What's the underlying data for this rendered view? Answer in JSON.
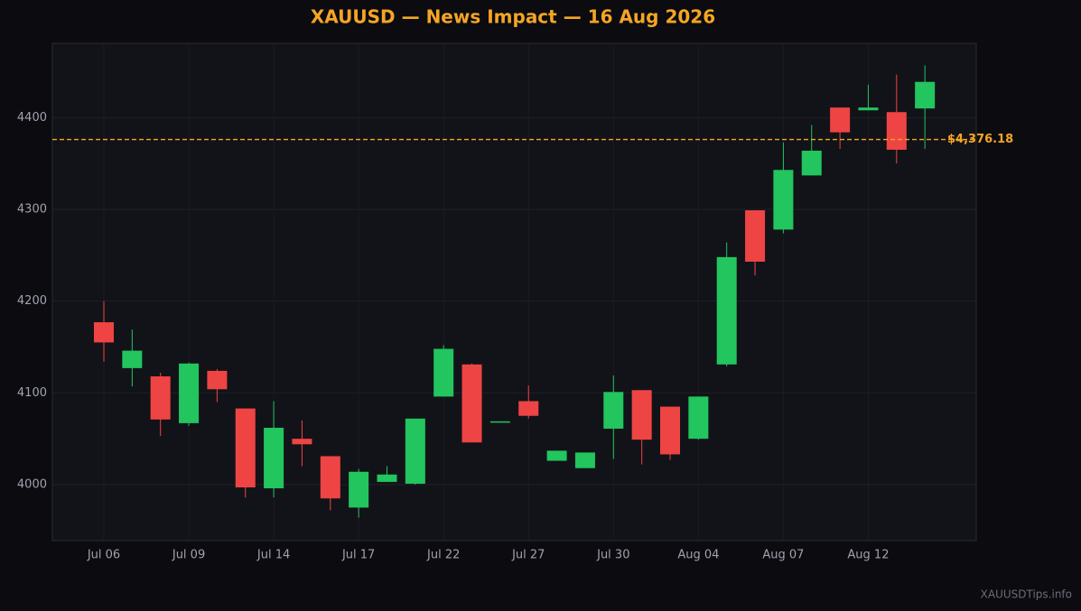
{
  "chart_data": {
    "type": "candlestick",
    "title": "XAUUSD — News Impact — 16 Aug 2026",
    "categories": [
      "Jul 06",
      null,
      null,
      "Jul 09",
      null,
      null,
      "Jul 14",
      null,
      null,
      "Jul 17",
      null,
      null,
      "Jul 22",
      null,
      null,
      "Jul 27",
      null,
      null,
      "Jul 30",
      null,
      null,
      "Aug 04",
      null,
      null,
      "Aug 07",
      null,
      null,
      "Aug 12",
      null,
      null
    ],
    "open": [
      4177,
      4127,
      4118,
      4067,
      4124,
      4083,
      3996,
      4050,
      4031,
      3975,
      4003,
      4001,
      4096,
      4131,
      4068,
      4091,
      4026,
      4018,
      4061,
      4103,
      4085,
      4050,
      4131,
      4299,
      4278,
      4337,
      4411,
      4408,
      4406,
      4410
    ],
    "high": [
      4200,
      4169,
      4122,
      4133,
      4126,
      4083,
      4091,
      4070,
      4031,
      4017,
      4020,
      4072,
      4152,
      4132,
      4069,
      4108,
      4037,
      4035,
      4119,
      4103,
      4085,
      4096,
      4264,
      4299,
      4373,
      4392,
      4411,
      4436,
      4447,
      4457
    ],
    "low": [
      4134,
      4107,
      4053,
      4064,
      4090,
      3986,
      3986,
      4020,
      3972,
      3964,
      4003,
      4000,
      4096,
      4046,
      4068,
      4072,
      4026,
      4018,
      4028,
      4022,
      4027,
      4049,
      4129,
      4228,
      4274,
      4337,
      4366,
      4408,
      4350,
      4366
    ],
    "close": [
      4155,
      4146,
      4071,
      4132,
      4104,
      3997,
      4062,
      4044,
      3985,
      4014,
      4011,
      4072,
      4148,
      4046,
      4069,
      4075,
      4037,
      4035,
      4101,
      4049,
      4033,
      4096,
      4248,
      4243,
      4343,
      4364,
      4384,
      4411,
      4365,
      4439
    ],
    "up_color": "#22c55e",
    "down_color": "#ef4444",
    "ylim": [
      3939,
      4481
    ],
    "yticks": [
      4000,
      4100,
      4200,
      4300,
      4400
    ],
    "grid": true,
    "reference_line": {
      "value": 4376.18,
      "label": "$4,376.18",
      "color": "#f5a524"
    },
    "watermark": "XAUUSDTips.info"
  }
}
